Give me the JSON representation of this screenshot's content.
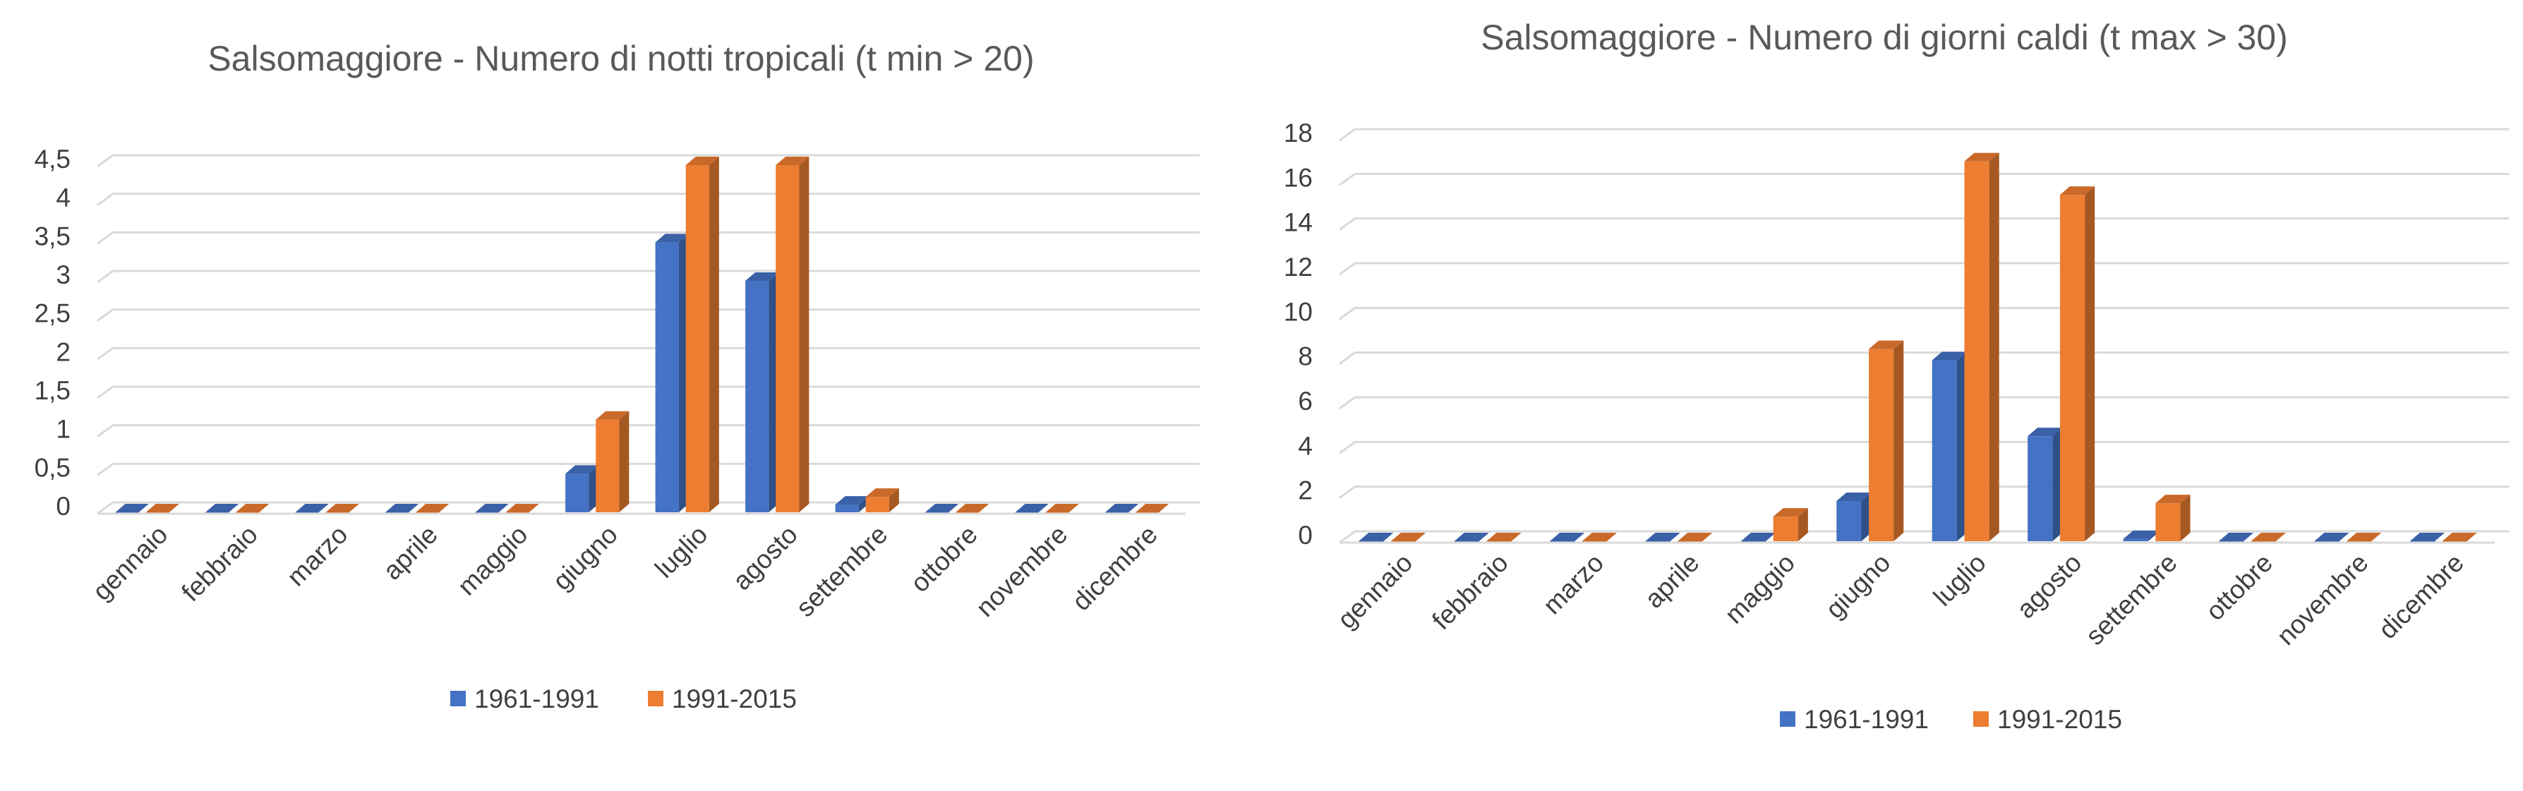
{
  "chart_data": [
    {
      "type": "bar",
      "title": "Salsomaggiore - Numero di notti tropicali (t min > 20)",
      "categories": [
        "gennaio",
        "febbraio",
        "marzo",
        "aprile",
        "maggio",
        "giugno",
        "luglio",
        "agosto",
        "settembre",
        "ottobre",
        "novembre",
        "dicembre"
      ],
      "series": [
        {
          "name": "1961-1991",
          "color": "#4472C4",
          "values": [
            0,
            0,
            0,
            0,
            0,
            0.5,
            3.5,
            3,
            0.1,
            0,
            0,
            0
          ]
        },
        {
          "name": "1991-2015",
          "color": "#ED7D31",
          "values": [
            0,
            0,
            0,
            0,
            0,
            1.2,
            4.5,
            4.5,
            0.2,
            0,
            0,
            0
          ]
        }
      ],
      "yticks": [
        "0",
        "0,5",
        "1",
        "1,5",
        "2",
        "2,5",
        "3",
        "3,5",
        "4",
        "4,5"
      ],
      "ylim": [
        0,
        4.5
      ],
      "grid": true,
      "legend": "bottom"
    },
    {
      "type": "bar",
      "title": "Salsomaggiore - Numero di giorni caldi (t max > 30)",
      "categories": [
        "gennaio",
        "febbraio",
        "marzo",
        "aprile",
        "maggio",
        "giugno",
        "luglio",
        "agosto",
        "settembre",
        "ottobre",
        "novembre",
        "dicembre"
      ],
      "series": [
        {
          "name": "1961-1991",
          "color": "#4472C4",
          "values": [
            0,
            0,
            0,
            0,
            0,
            1.8,
            8.1,
            4.7,
            0.1,
            0,
            0,
            0
          ]
        },
        {
          "name": "1991-2015",
          "color": "#ED7D31",
          "values": [
            0,
            0,
            0,
            0,
            1.1,
            8.6,
            17,
            15.5,
            1.7,
            0,
            0,
            0
          ]
        }
      ],
      "yticks": [
        "0",
        "2",
        "4",
        "6",
        "8",
        "10",
        "12",
        "14",
        "16",
        "18"
      ],
      "ylim": [
        0,
        18
      ],
      "grid": true,
      "legend": "bottom"
    }
  ]
}
